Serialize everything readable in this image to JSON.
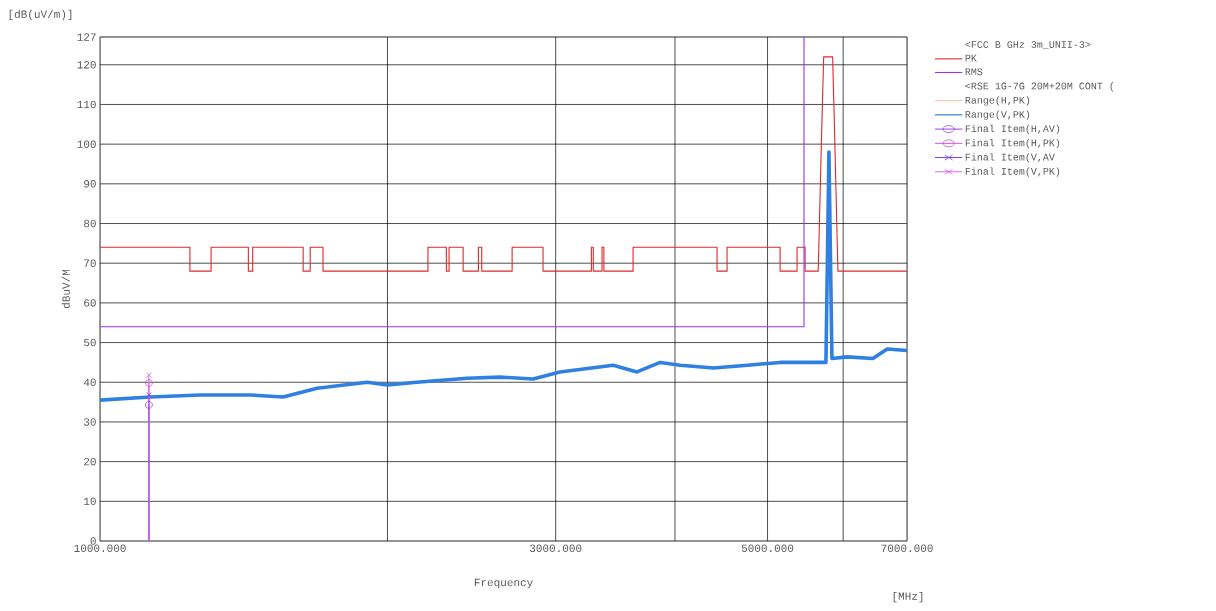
{
  "chart_data": {
    "type": "line",
    "xlabel": "Frequency",
    "ylabel": "dBuV/M",
    "annotations": [
      "<FCC B GHz 3m_UNII-3>",
      "<RSE 1G-7G 20M+20M CONT (",
      "[dB(uV/m)]",
      "[MHz]"
    ],
    "log": "x",
    "grid": true,
    "legend": "right",
    "xlim": [
      1000,
      7000
    ],
    "ylim": [
      0,
      127
    ],
    "xticks": [
      {
        "value": 1000,
        "label": "1000.000"
      },
      {
        "value": 2000,
        "label": null
      },
      {
        "value": 3000,
        "label": "3000.000"
      },
      {
        "value": 4000,
        "label": null
      },
      {
        "value": 5000,
        "label": "5000.000"
      },
      {
        "value": 6000,
        "label": null
      },
      {
        "value": 7000,
        "label": "7000.000"
      }
    ],
    "yticks": [
      0,
      10,
      20,
      30,
      40,
      50,
      60,
      70,
      80,
      90,
      100,
      110,
      120,
      127
    ],
    "series": [
      {
        "name": "PK",
        "color": "#e02828",
        "x": [
          1000,
          1242,
          1242,
          1307,
          1307,
          1430,
          1430,
          1445,
          1445,
          1632,
          1632,
          1660,
          1660,
          1712,
          1712,
          2205,
          2205,
          2305,
          2305,
          2320,
          2320,
          2400,
          2400,
          2490,
          2490,
          2510,
          2510,
          2701,
          2701,
          2910,
          2910,
          3270,
          3270,
          3285,
          3285,
          3355,
          3355,
          3370,
          3370,
          3616,
          3616,
          4427,
          4427,
          4535,
          4535,
          5154,
          5154,
          5369,
          5369,
          5474,
          5474,
          5650,
          5700,
          5725,
          5850,
          5875,
          5925,
          7000
        ],
        "values": [
          74,
          74,
          68,
          68,
          74,
          74,
          68,
          68,
          74,
          74,
          68,
          68,
          74,
          74,
          68,
          68,
          74,
          74,
          68,
          68,
          74,
          74,
          68,
          68,
          74,
          74,
          68,
          68,
          74,
          74,
          68,
          68,
          74,
          74,
          68,
          68,
          74,
          74,
          68,
          68,
          74,
          74,
          68,
          68,
          74,
          74,
          68,
          68,
          74,
          74,
          68,
          68,
          105,
          122,
          122,
          105,
          68,
          68
        ]
      },
      {
        "name": "RMS",
        "color": "#9933ee",
        "x": [
          1000,
          5460,
          5460
        ],
        "values": [
          54,
          54,
          127
        ]
      },
      {
        "name": "Range(H,PK)",
        "color": "#f08040"
      },
      {
        "name": "Range(V,PK)",
        "color": "#2f80e0",
        "x": [
          1000,
          1128,
          1273,
          1436,
          1555,
          1688,
          1904,
          2000,
          2146,
          2423,
          2624,
          2841,
          3031,
          3447,
          3650,
          3860,
          4051,
          4388,
          4764,
          5154,
          5584,
          5756,
          5798,
          5840,
          6062,
          6447,
          6672,
          7000
        ],
        "values": [
          35.5,
          36.3,
          36.8,
          36.8,
          36.3,
          38.5,
          40,
          39.3,
          40,
          41,
          41.3,
          40.8,
          42.6,
          44.3,
          42.6,
          45,
          44.3,
          43.6,
          44.3,
          45,
          45,
          45,
          98,
          46,
          46.4,
          46,
          48.4,
          48
        ]
      },
      {
        "name": "Final Item(H,AV)",
        "type": "lollipop",
        "marker": "circle",
        "color": "#9944dd",
        "x": [
          1125
        ],
        "values": [
          34.3
        ]
      },
      {
        "name": "Final Item(H,PK)",
        "type": "lollipop",
        "marker": "circle",
        "color": "#cc55cc",
        "x": [
          1125
        ],
        "values": [
          39.8
        ]
      },
      {
        "name": "Final Item(V,AV",
        "type": "lollipop",
        "marker": "cross",
        "color": "#7744dd",
        "x": [
          1125
        ],
        "values": [
          36.8
        ]
      },
      {
        "name": "Final Item(V,PK)",
        "type": "lollipop",
        "marker": "cross",
        "color": "#dd66ee",
        "x": [
          1125
        ],
        "values": [
          41.8
        ]
      }
    ]
  }
}
